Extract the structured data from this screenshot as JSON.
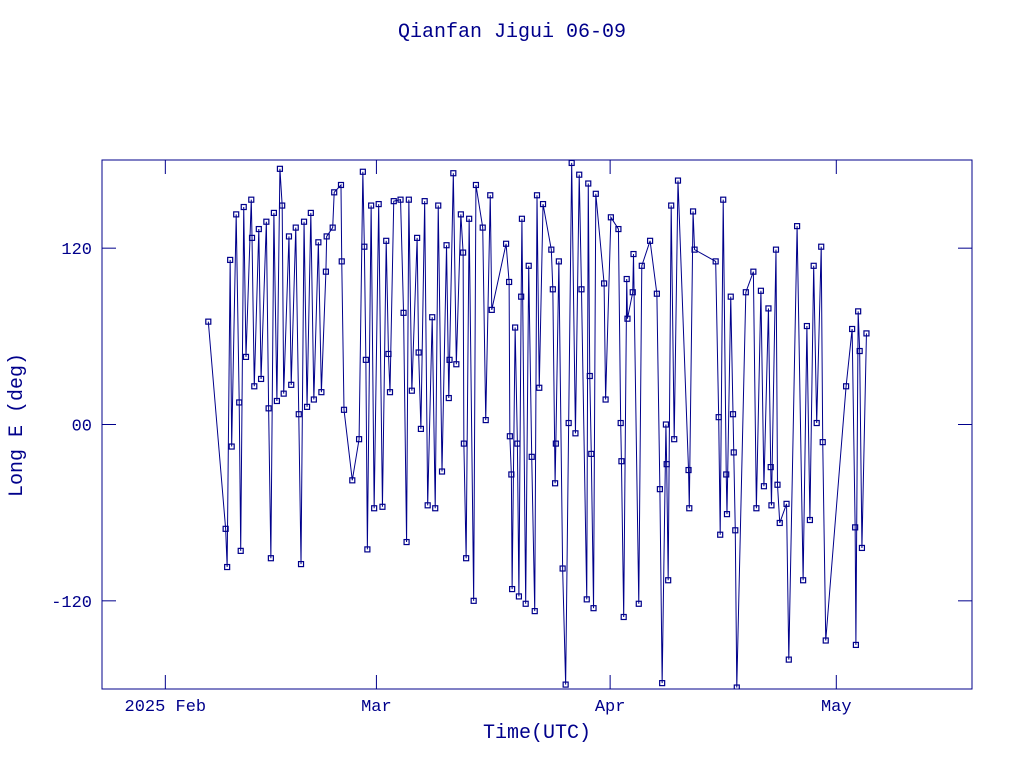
{
  "chart_data": {
    "type": "line",
    "title": "Qianfan Jigui 06-09",
    "x_label": "Time(UTC)",
    "y_label": "Long E (deg)",
    "color": "#00008b",
    "xlim": [
      23.6,
      139
    ],
    "ylim": [
      -180,
      180
    ],
    "xticks": [
      {
        "value": 32,
        "label": "2025 Feb"
      },
      {
        "value": 60,
        "label": "Mar"
      },
      {
        "value": 91,
        "label": "Apr"
      },
      {
        "value": 121,
        "label": "May"
      }
    ],
    "yticks": [
      -120,
      {
        "value": 0,
        "label": "00"
      },
      120
    ],
    "x": [
      37.7,
      40.0,
      40.2,
      40.6,
      40.8,
      41.4,
      41.8,
      42.0,
      42.4,
      42.7,
      43.4,
      43.5,
      43.8,
      44.4,
      44.7,
      45.4,
      45.7,
      46.0,
      46.4,
      46.8,
      47.2,
      47.5,
      47.7,
      48.4,
      48.7,
      49.3,
      49.7,
      50.0,
      50.4,
      50.8,
      51.3,
      51.7,
      52.3,
      52.7,
      53.3,
      53.4,
      54.2,
      54.4,
      55.3,
      55.4,
      55.7,
      56.8,
      57.7,
      58.2,
      58.4,
      58.6,
      58.8,
      59.3,
      59.7,
      60.3,
      60.8,
      61.3,
      61.6,
      61.8,
      62.3,
      63.2,
      63.6,
      64.0,
      64.3,
      64.7,
      65.4,
      65.6,
      65.9,
      66.4,
      66.8,
      67.4,
      67.8,
      68.2,
      68.7,
      69.3,
      69.6,
      69.7,
      70.2,
      70.6,
      71.2,
      71.5,
      71.6,
      71.9,
      72.3,
      72.9,
      73.2,
      74.1,
      74.5,
      75.1,
      75.3,
      77.2,
      77.6,
      77.7,
      77.9,
      78.0,
      78.4,
      78.7,
      78.9,
      79.2,
      79.3,
      79.8,
      80.2,
      80.6,
      81.0,
      81.3,
      81.6,
      82.1,
      83.2,
      83.4,
      83.7,
      83.8,
      84.2,
      84.7,
      85.1,
      85.5,
      85.9,
      86.4,
      86.9,
      87.2,
      87.9,
      88.1,
      88.3,
      88.5,
      88.8,
      89.1,
      90.2,
      90.4,
      91.1,
      92.1,
      92.4,
      92.5,
      92.8,
      93.2,
      93.3,
      94.0,
      94.1,
      94.8,
      95.2,
      96.3,
      97.2,
      97.6,
      97.9,
      98.4,
      98.5,
      98.7,
      99.1,
      99.5,
      100.0,
      101.4,
      101.5,
      102.0,
      102.2,
      105.0,
      105.4,
      105.6,
      106.0,
      106.4,
      106.5,
      107.0,
      107.3,
      107.4,
      107.6,
      107.8,
      109.0,
      110.0,
      110.4,
      111.0,
      111.4,
      112.0,
      112.3,
      112.4,
      113.0,
      113.2,
      113.5,
      114.4,
      114.7,
      115.8,
      116.6,
      117.1,
      117.5,
      118.0,
      118.4,
      119.0,
      119.2,
      119.6,
      122.3,
      123.1,
      123.5,
      123.6,
      123.9,
      124.1,
      124.4,
      125.0
    ],
    "values": [
      70,
      -71,
      -97,
      112,
      -15,
      143,
      15,
      -86,
      148,
      46,
      153,
      127,
      26,
      133,
      31,
      138,
      11,
      -91,
      144,
      16,
      174,
      149,
      21,
      128,
      27,
      134,
      7,
      -95,
      138,
      12,
      144,
      17,
      124,
      22,
      104,
      128,
      134,
      158,
      163,
      111,
      10,
      -38,
      -10,
      172,
      121,
      44,
      -85,
      149,
      -57,
      150,
      -56,
      125,
      48,
      22,
      152,
      153,
      76,
      -80,
      153,
      23,
      127,
      49,
      -3,
      152,
      -55,
      73,
      -57,
      149,
      -32,
      122,
      18,
      44,
      171,
      41,
      143,
      117,
      -13,
      -91,
      140,
      -120,
      163,
      134,
      3,
      156,
      78,
      123,
      97,
      -8,
      -34,
      -112,
      66,
      -13,
      -117,
      87,
      140,
      -122,
      108,
      -22,
      -127,
      156,
      25,
      150,
      119,
      92,
      -40,
      -13,
      111,
      -98,
      -177,
      1,
      178,
      -6,
      170,
      92,
      -119,
      164,
      33,
      -20,
      -125,
      157,
      96,
      17,
      141,
      133,
      1,
      -25,
      -131,
      99,
      72,
      90,
      116,
      -122,
      108,
      125,
      89,
      -44,
      -176,
      0,
      -27,
      -106,
      149,
      -10,
      166,
      -31,
      -57,
      145,
      119,
      111,
      5,
      -75,
      153,
      -34,
      -61,
      87,
      7,
      -19,
      -72,
      -179,
      90,
      104,
      -57,
      91,
      -42,
      79,
      -29,
      -55,
      119,
      -41,
      -67,
      -54,
      -160,
      135,
      -106,
      67,
      -65,
      108,
      1,
      121,
      -12,
      -147,
      26,
      65,
      -70,
      -150,
      77,
      50,
      -84,
      62
    ]
  }
}
